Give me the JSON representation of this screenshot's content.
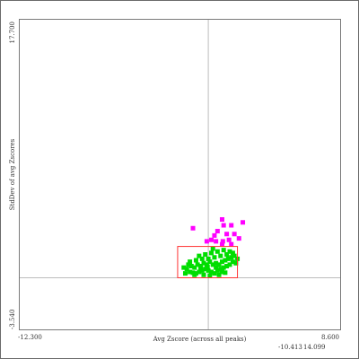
{
  "chart_data": {
    "type": "scatter",
    "xlabel": "Avg Zscore (across all peaks)",
    "ylabel": "StdDev of avg Zscores",
    "xlim": [
      -12.3,
      8.6
    ],
    "ylim": [
      -3.54,
      17.7
    ],
    "x_tick_labels": [
      "-12.300",
      "8.600"
    ],
    "y_tick_labels": [
      "-3.540",
      "17.700"
    ],
    "crosshair": {
      "x": 0.0,
      "y": 0.0
    },
    "selection_box": {
      "x": [
        -2.0,
        1.9
      ],
      "y": [
        0.0,
        2.15
      ]
    },
    "series": [
      {
        "color": "#ff00ff",
        "points": [
          [
            -1.0,
            3.4
          ],
          [
            0.9,
            4.0
          ],
          [
            1.5,
            3.6
          ],
          [
            2.25,
            3.8
          ],
          [
            1.0,
            3.6
          ],
          [
            0.6,
            3.2
          ],
          [
            1.2,
            3.0
          ],
          [
            0.4,
            2.9
          ],
          [
            1.7,
            3.0
          ],
          [
            0.2,
            2.6
          ],
          [
            0.5,
            2.5
          ],
          [
            1.35,
            2.6
          ],
          [
            -0.1,
            2.5
          ],
          [
            1.5,
            2.3
          ],
          [
            0.9,
            2.3
          ],
          [
            2.0,
            2.7
          ],
          [
            0.95,
            2.5
          ]
        ]
      },
      {
        "color": "#00dd00",
        "points": [
          [
            -1.3,
            0.9
          ],
          [
            -1.4,
            0.6
          ],
          [
            -1.2,
            0.4
          ],
          [
            -1.0,
            0.35
          ],
          [
            -0.8,
            0.3
          ],
          [
            -0.6,
            0.4
          ],
          [
            -0.4,
            0.5
          ],
          [
            -0.2,
            0.6
          ],
          [
            0.0,
            0.5
          ],
          [
            0.2,
            0.4
          ],
          [
            0.4,
            0.3
          ],
          [
            0.6,
            0.5
          ],
          [
            0.8,
            0.6
          ],
          [
            1.0,
            0.7
          ],
          [
            1.2,
            0.8
          ],
          [
            1.4,
            0.9
          ],
          [
            1.6,
            1.1
          ],
          [
            1.8,
            1.0
          ],
          [
            -1.1,
            0.8
          ],
          [
            -0.9,
            0.7
          ],
          [
            -0.7,
            0.9
          ],
          [
            -0.5,
            0.8
          ],
          [
            -0.3,
            1.0
          ],
          [
            -0.1,
            0.9
          ],
          [
            0.1,
            1.1
          ],
          [
            0.3,
            0.9
          ],
          [
            0.5,
            1.0
          ],
          [
            0.7,
            0.9
          ],
          [
            0.9,
            1.1
          ],
          [
            1.1,
            1.2
          ],
          [
            1.3,
            1.3
          ],
          [
            1.5,
            1.4
          ],
          [
            -1.2,
            1.1
          ],
          [
            -0.8,
            1.2
          ],
          [
            -0.4,
            1.3
          ],
          [
            0.0,
            1.3
          ],
          [
            0.4,
            1.4
          ],
          [
            0.8,
            1.5
          ],
          [
            1.2,
            1.6
          ],
          [
            1.6,
            1.7
          ],
          [
            -0.6,
            1.5
          ],
          [
            -0.2,
            1.6
          ],
          [
            0.2,
            1.7
          ],
          [
            0.6,
            1.8
          ],
          [
            1.0,
            1.9
          ],
          [
            -1.5,
            0.3
          ],
          [
            -0.3,
            0.2
          ],
          [
            0.1,
            0.15
          ],
          [
            0.7,
            0.2
          ],
          [
            1.1,
            0.35
          ],
          [
            1.7,
            1.5
          ],
          [
            1.4,
            1.8
          ],
          [
            0.3,
            2.0
          ],
          [
            -0.9,
            0.2
          ],
          [
            0.5,
            0.7
          ],
          [
            -0.5,
            0.6
          ],
          [
            1.9,
            1.3
          ],
          [
            -1.6,
            0.7
          ],
          [
            0.9,
            0.4
          ],
          [
            -0.05,
            0.75
          ]
        ]
      }
    ]
  },
  "cursor_readout": {
    "x": "-10.413",
    "y": "14.099"
  }
}
